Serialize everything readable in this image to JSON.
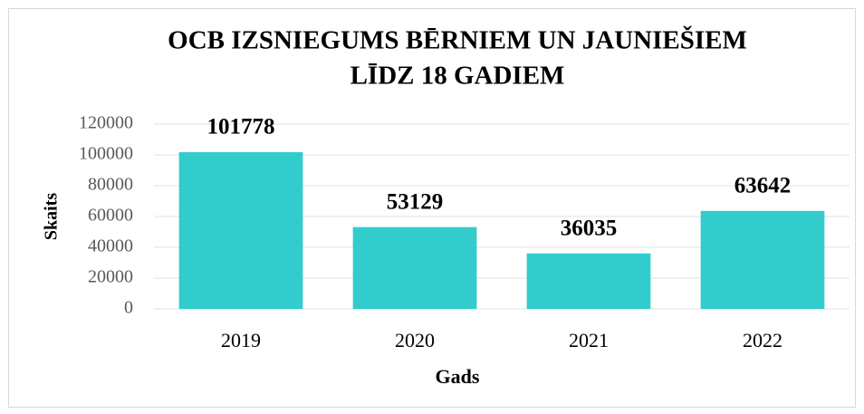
{
  "chart_data": {
    "type": "bar",
    "title": [
      "OCB IZSNIEGUMS BĒRNIEM UN JAUNIEŠIEM",
      "LĪDZ 18 GADIEM"
    ],
    "x_label": "Gads",
    "y_label": "Skaits",
    "categories": [
      "2019",
      "2020",
      "2021",
      "2022"
    ],
    "values": [
      101778,
      53129,
      36035,
      63642
    ],
    "color": "#33cccc",
    "ylim": [
      0,
      120000
    ],
    "yticks": [
      0,
      20000,
      40000,
      60000,
      80000,
      100000,
      120000
    ],
    "grid": true
  }
}
